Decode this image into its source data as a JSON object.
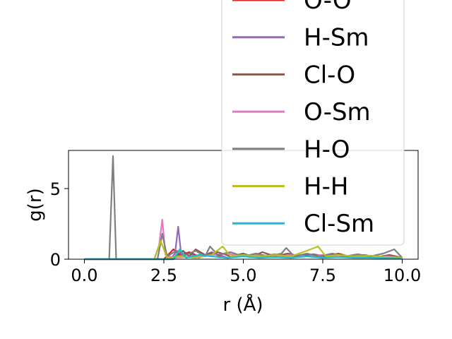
{
  "chart_data": {
    "type": "line",
    "title": "",
    "xlabel": "r (Å)",
    "ylabel": "g(r)",
    "xlim": [
      -0.5,
      10.5
    ],
    "ylim": [
      0,
      7.7
    ],
    "xticks": [
      0.0,
      2.5,
      5.0,
      7.5,
      10.0
    ],
    "xtick_labels": [
      "0.0",
      "2.5",
      "5.0",
      "7.5",
      "10.0"
    ],
    "yticks": [
      0,
      5
    ],
    "ytick_labels": [
      "0",
      "5"
    ],
    "grid": false,
    "legend_position": "upper-right, extending above the axes",
    "series": [
      {
        "name": "O-O",
        "color": "#d62728",
        "points": [
          [
            0,
            0
          ],
          [
            2.5,
            0
          ],
          [
            2.8,
            0.7
          ],
          [
            3.0,
            0.3
          ],
          [
            3.3,
            0.5
          ],
          [
            3.6,
            0.2
          ],
          [
            4.0,
            0.4
          ],
          [
            4.5,
            0.1
          ],
          [
            5.0,
            0.35
          ],
          [
            5.5,
            0.15
          ],
          [
            6.0,
            0.3
          ],
          [
            6.5,
            0.1
          ],
          [
            7.0,
            0.25
          ],
          [
            7.5,
            0.1
          ],
          [
            8.0,
            0.3
          ],
          [
            8.5,
            0.1
          ],
          [
            9.0,
            0.2
          ],
          [
            9.5,
            0.1
          ],
          [
            10,
            0.1
          ]
        ]
      },
      {
        "name": "H-Sm",
        "color": "#9467bd",
        "points": [
          [
            0,
            0
          ],
          [
            2.7,
            0
          ],
          [
            2.85,
            0.4
          ],
          [
            2.95,
            2.3
          ],
          [
            3.05,
            0.2
          ],
          [
            3.3,
            0.4
          ],
          [
            3.6,
            0.1
          ],
          [
            4.0,
            0.5
          ],
          [
            4.5,
            0.1
          ],
          [
            5.0,
            0.3
          ],
          [
            5.5,
            0.2
          ],
          [
            6.0,
            0.35
          ],
          [
            6.5,
            0.1
          ],
          [
            7.0,
            0.3
          ],
          [
            7.5,
            0.1
          ],
          [
            8.0,
            0.3
          ],
          [
            8.5,
            0.15
          ],
          [
            9.0,
            0.25
          ],
          [
            9.5,
            0.1
          ],
          [
            10,
            0.1
          ]
        ]
      },
      {
        "name": "Cl-O",
        "color": "#8c564b",
        "points": [
          [
            0,
            0
          ],
          [
            2.8,
            0
          ],
          [
            3.1,
            0.6
          ],
          [
            3.3,
            0.2
          ],
          [
            3.5,
            0.7
          ],
          [
            3.8,
            0.3
          ],
          [
            4.2,
            0.5
          ],
          [
            4.6,
            0.2
          ],
          [
            5.0,
            0.4
          ],
          [
            5.3,
            0.2
          ],
          [
            5.6,
            0.5
          ],
          [
            6.0,
            0.2
          ],
          [
            6.4,
            0.4
          ],
          [
            6.8,
            0.2
          ],
          [
            7.2,
            0.35
          ],
          [
            7.6,
            0.2
          ],
          [
            8.0,
            0.4
          ],
          [
            8.4,
            0.15
          ],
          [
            8.8,
            0.3
          ],
          [
            9.2,
            0.15
          ],
          [
            9.6,
            0.3
          ],
          [
            10,
            0.1
          ]
        ]
      },
      {
        "name": "O-Sm",
        "color": "#e377c2",
        "points": [
          [
            0,
            0
          ],
          [
            2.2,
            0
          ],
          [
            2.35,
            1.0
          ],
          [
            2.45,
            2.8
          ],
          [
            2.55,
            0.3
          ],
          [
            2.8,
            0.1
          ],
          [
            3.5,
            0.2
          ],
          [
            4.0,
            0.3
          ],
          [
            4.5,
            0.4
          ],
          [
            5.0,
            0.2
          ],
          [
            5.5,
            0.3
          ],
          [
            6.0,
            0.15
          ],
          [
            6.5,
            0.3
          ],
          [
            7.0,
            0.2
          ],
          [
            7.5,
            0.3
          ],
          [
            8.0,
            0.15
          ],
          [
            8.5,
            0.25
          ],
          [
            9.0,
            0.1
          ],
          [
            9.5,
            0.2
          ],
          [
            10,
            0.1
          ]
        ]
      },
      {
        "name": "H-O",
        "color": "#7f7f7f",
        "points": [
          [
            0,
            0
          ],
          [
            0.78,
            0
          ],
          [
            0.9,
            7.3
          ],
          [
            1.0,
            0
          ],
          [
            2.3,
            0
          ],
          [
            2.45,
            1.8
          ],
          [
            2.6,
            0.2
          ],
          [
            2.9,
            0.6
          ],
          [
            3.2,
            0.3
          ],
          [
            3.5,
            0.6
          ],
          [
            3.8,
            0.2
          ],
          [
            3.95,
            0.9
          ],
          [
            4.2,
            0.3
          ],
          [
            4.6,
            0.5
          ],
          [
            5.0,
            0.2
          ],
          [
            5.4,
            0.4
          ],
          [
            5.8,
            0.2
          ],
          [
            6.2,
            0.4
          ],
          [
            6.35,
            0.8
          ],
          [
            6.6,
            0.2
          ],
          [
            7.0,
            0.4
          ],
          [
            7.4,
            0.2
          ],
          [
            7.8,
            0.4
          ],
          [
            8.2,
            0.2
          ],
          [
            8.6,
            0.35
          ],
          [
            9.0,
            0.2
          ],
          [
            9.4,
            0.4
          ],
          [
            9.75,
            0.7
          ],
          [
            10,
            0.1
          ]
        ]
      },
      {
        "name": "H-H",
        "color": "#bcbd22",
        "points": [
          [
            0,
            0
          ],
          [
            2.2,
            0
          ],
          [
            2.4,
            1.3
          ],
          [
            2.6,
            0.1
          ],
          [
            3.0,
            0.2
          ],
          [
            3.5,
            0.1
          ],
          [
            4.0,
            0.3
          ],
          [
            4.35,
            0.9
          ],
          [
            4.6,
            0.2
          ],
          [
            5.0,
            0.3
          ],
          [
            5.5,
            0.2
          ],
          [
            6.0,
            0.3
          ],
          [
            6.5,
            0.2
          ],
          [
            7.0,
            0.6
          ],
          [
            7.35,
            0.9
          ],
          [
            7.6,
            0.2
          ],
          [
            8.0,
            0.3
          ],
          [
            8.5,
            0.2
          ],
          [
            9.0,
            0.25
          ],
          [
            9.5,
            0.15
          ],
          [
            10,
            0.1
          ]
        ]
      },
      {
        "name": "Cl-Sm",
        "color": "#17becf",
        "points": [
          [
            0,
            0
          ],
          [
            2.8,
            0
          ],
          [
            3.0,
            0.7
          ],
          [
            3.2,
            0.1
          ],
          [
            3.6,
            0.3
          ],
          [
            4.0,
            0.2
          ],
          [
            4.5,
            0.1
          ],
          [
            5.0,
            0.2
          ],
          [
            5.5,
            0.1
          ],
          [
            6.0,
            0.15
          ],
          [
            6.5,
            0.1
          ],
          [
            7.0,
            0.2
          ],
          [
            7.5,
            0.1
          ],
          [
            8.0,
            0.15
          ],
          [
            8.5,
            0.1
          ],
          [
            9.0,
            0.1
          ],
          [
            10,
            0.05
          ]
        ]
      }
    ]
  }
}
